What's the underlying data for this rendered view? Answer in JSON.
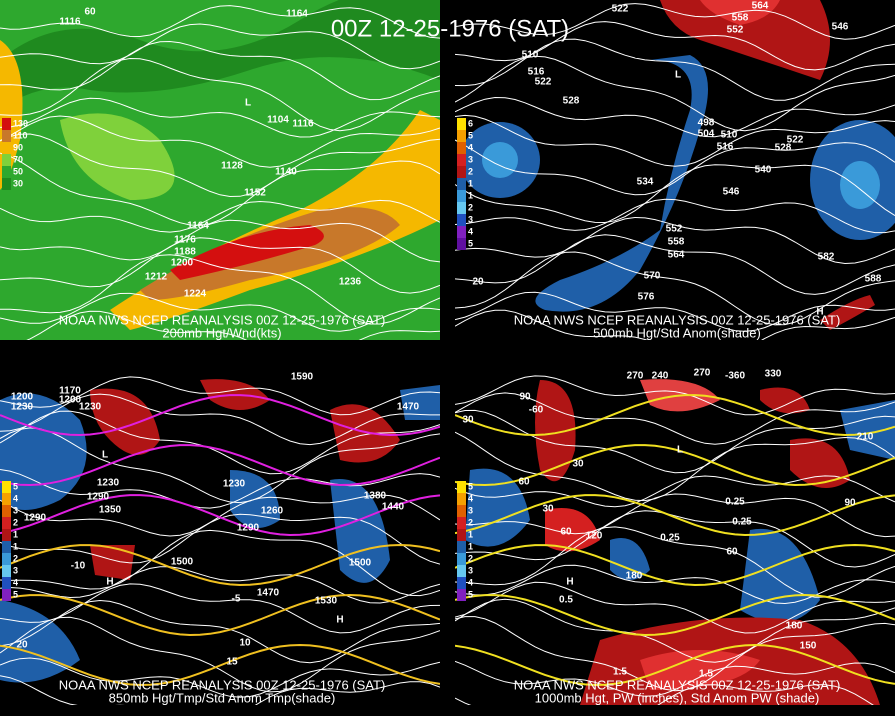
{
  "title": "00Z 12-25-1976 (SAT)",
  "panels": [
    {
      "caption": [
        "NOAA NWS NCEP REANALYSIS 00Z 12-25-1976 (SAT)",
        "200mb Hgt/Wnd(kts)"
      ],
      "legend": [
        "130",
        "110",
        "90",
        "70",
        "50",
        "30"
      ],
      "labels": [
        "1116",
        "1164",
        "L",
        "1104",
        "1116",
        "1128",
        "1140",
        "1152",
        "1164",
        "1176",
        "1188",
        "1200",
        "1212",
        "1224",
        "1236",
        "60"
      ]
    },
    {
      "caption": [
        "NOAA NWS NCEP REANALYSIS 00Z 12-25-1976 (SAT)",
        "500mb Hgt/Std Anom(shade)"
      ],
      "legend": [
        "6",
        "5",
        "4",
        "3",
        "2",
        "1",
        "1",
        "2",
        "3",
        "4",
        "5"
      ],
      "labels": [
        "522",
        "564",
        "558",
        "552",
        "546",
        "510",
        "516",
        "522",
        "528",
        "L",
        "498",
        "504",
        "510",
        "516",
        "522",
        "528",
        "540",
        "534",
        "546",
        "552",
        "558",
        "564",
        "570",
        "576",
        "582",
        "588",
        "20",
        "H"
      ]
    },
    {
      "caption": [
        "NOAA NWS NCEP REANALYSIS 00Z 12-25-1976 (SAT)",
        "850mb Hgt/Tmp/Std Anom Tmp(shade)"
      ],
      "legend": [
        "5",
        "4",
        "3",
        "2",
        "1",
        "1",
        "2",
        "3",
        "4",
        "5"
      ],
      "labels": [
        "1200",
        "1230",
        "1170",
        "1200",
        "1230",
        "1590",
        "1470",
        "1230",
        "1290",
        "1350",
        "1290",
        "1230",
        "1260",
        "1290",
        "1380",
        "1440",
        "1500",
        "1500",
        "1470",
        "1530",
        "10",
        "15",
        "20",
        "-10",
        "-5",
        "L",
        "H",
        "H"
      ]
    },
    {
      "caption": [
        "NOAA NWS NCEP REANALYSIS 00Z 12-25-1976 (SAT)",
        "1000mb Hgt, PW (inches), Std Anom PW (shade)"
      ],
      "legend": [
        "5",
        "4",
        "3",
        "2",
        "1",
        "1",
        "2",
        "3",
        "4",
        "5"
      ],
      "labels": [
        "270",
        "240",
        "270",
        "-360",
        "330",
        "210",
        "90",
        "-60",
        "30",
        "60",
        "30",
        "60",
        "120",
        "0.25",
        "0.25",
        "0.5",
        "0.25",
        "60",
        "180",
        "180",
        "150",
        "1.5",
        "1.5",
        "30",
        "90",
        "L",
        "H"
      ]
    }
  ]
}
